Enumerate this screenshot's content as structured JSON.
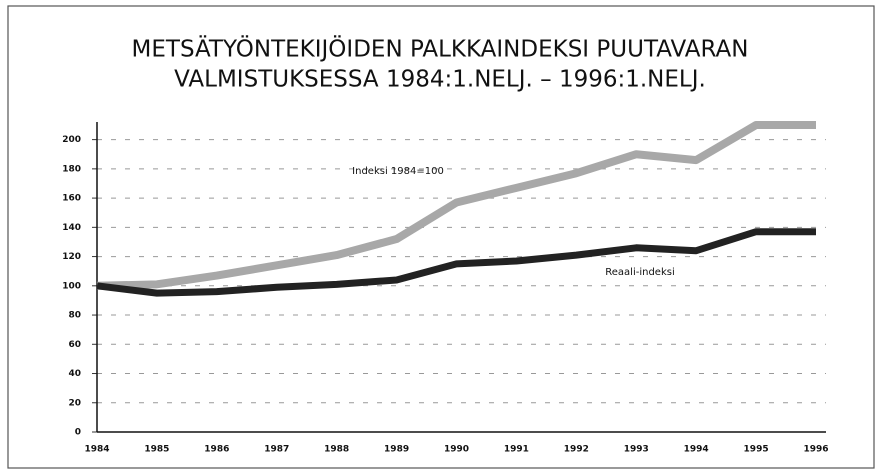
{
  "chart_data": {
    "type": "line",
    "title": [
      "METSÄTYÖNTEKIJÖIDEN PALKKAINDEKSI PUUTAVARAN",
      "VALMISTUKSESSA 1984:1.NELJ. – 1996:1.NELJ."
    ],
    "categories": [
      "1984",
      "1985",
      "1986",
      "1987",
      "1988",
      "1989",
      "1990",
      "1991",
      "1992",
      "1993",
      "1994",
      "1995",
      "1996"
    ],
    "series": [
      {
        "name": "Indeksi 1984=100",
        "color": "#a8a8a8",
        "values": [
          100,
          101,
          107,
          114,
          121,
          132,
          157,
          167,
          177,
          190,
          186,
          210,
          210
        ]
      },
      {
        "name": "Reaali-indeksi",
        "color": "#222222",
        "values": [
          100,
          95,
          96,
          99,
          101,
          104,
          115,
          117,
          121,
          126,
          124,
          137,
          137
        ]
      }
    ],
    "ylim": [
      0,
      210
    ],
    "yticks": [
      0,
      20,
      40,
      60,
      80,
      100,
      120,
      140,
      160,
      180,
      200
    ],
    "grid": true
  }
}
